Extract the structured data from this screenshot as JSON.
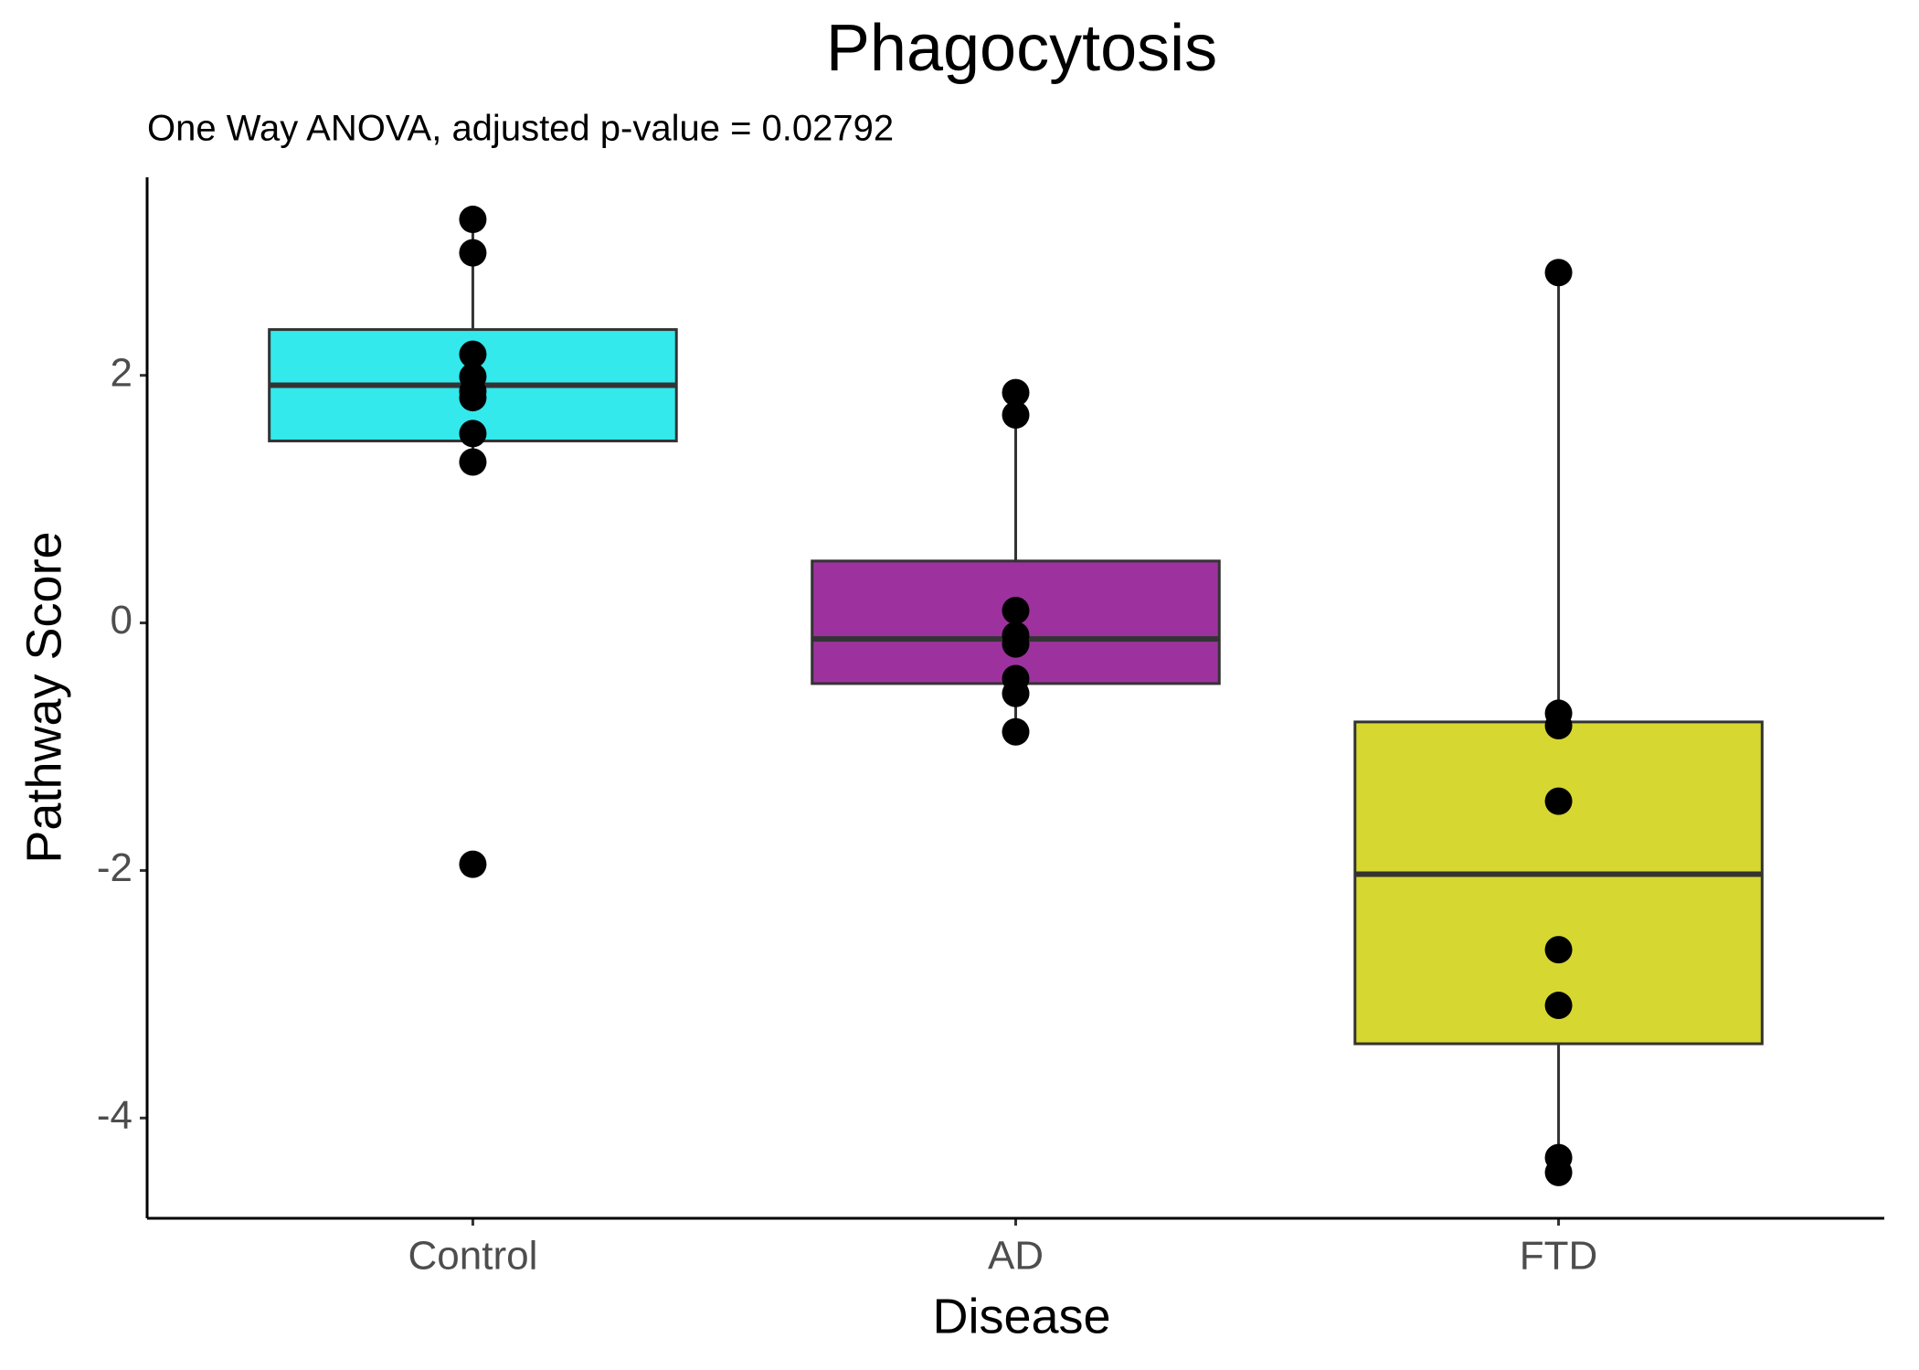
{
  "chart_data": {
    "type": "box",
    "title": "Phagocytosis",
    "subtitle": "One Way ANOVA, adjusted p-value = 0.02792",
    "x_label": "Disease",
    "y_label": "Pathway Score",
    "categories": [
      "Control",
      "AD",
      "FTD"
    ],
    "series": [
      {
        "color": "#33e9ec",
        "q1": 1.47,
        "median": 1.92,
        "q3": 2.37,
        "whisker_low": 1.3,
        "whisker_high": 3.26,
        "points": [
          3.26,
          2.99,
          2.17,
          1.99,
          1.87,
          1.82,
          1.53,
          1.3,
          -1.95
        ]
      },
      {
        "color": "#9d329e",
        "q1": -0.49,
        "median": -0.13,
        "q3": 0.5,
        "whisker_low": -0.88,
        "whisker_high": 1.86,
        "points": [
          1.86,
          1.68,
          0.1,
          -0.1,
          -0.17,
          -0.45,
          -0.57,
          -0.88
        ]
      },
      {
        "color": "#d7d731",
        "q1": -3.4,
        "median": -2.03,
        "q3": -0.8,
        "whisker_low": -4.44,
        "whisker_high": 2.83,
        "points": [
          2.83,
          -0.73,
          -0.83,
          -1.44,
          -2.64,
          -3.09,
          -4.32,
          -4.44
        ]
      }
    ],
    "ylim": [
      -4.81,
      3.6
    ],
    "yticks": [
      -4,
      -2,
      0,
      2
    ],
    "grid": false
  }
}
